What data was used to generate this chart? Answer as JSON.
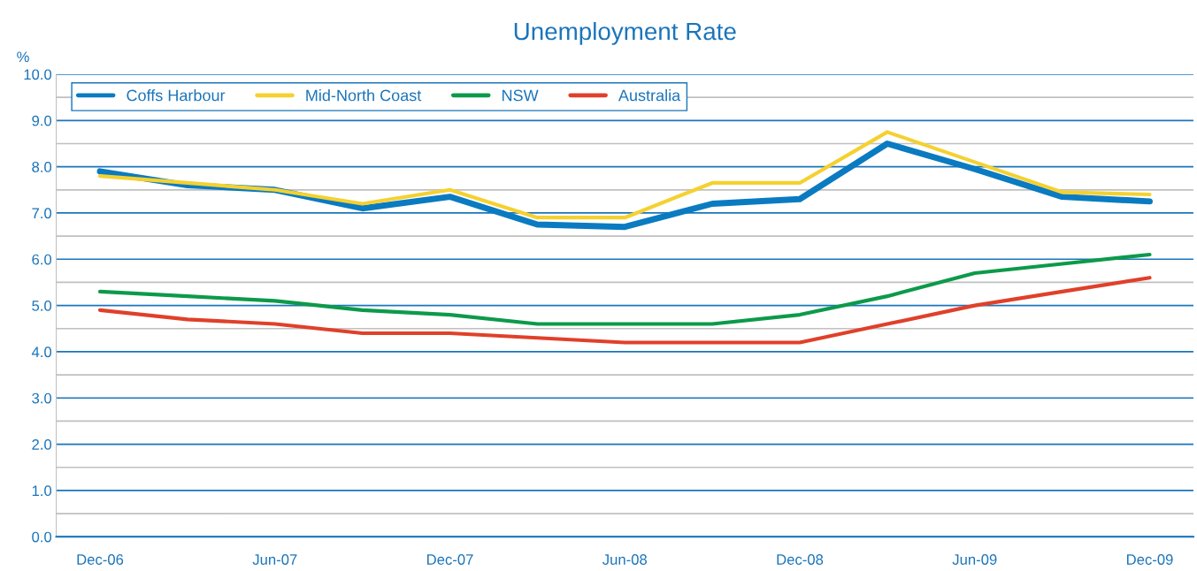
{
  "chart_data": {
    "type": "line",
    "title": "Unemployment Rate",
    "ylabel": "%",
    "categories": [
      "Dec-06",
      null,
      "Jun-07",
      null,
      "Dec-07",
      null,
      "Jun-08",
      null,
      "Dec-08",
      null,
      "Jun-09",
      null,
      "Dec-09"
    ],
    "series": [
      {
        "name": "Coffs Harbour",
        "color": "#0a7bc1",
        "values": [
          7.9,
          7.6,
          7.5,
          7.1,
          7.35,
          6.75,
          6.7,
          7.2,
          7.3,
          8.5,
          7.95,
          7.35,
          7.25
        ]
      },
      {
        "name": "Mid-North Coast",
        "color": "#f5d130",
        "values": [
          7.8,
          7.65,
          7.5,
          7.2,
          7.5,
          6.9,
          6.9,
          7.65,
          7.65,
          8.75,
          8.1,
          7.45,
          7.4
        ]
      },
      {
        "name": "NSW",
        "color": "#0c9a4a",
        "values": [
          5.3,
          5.2,
          5.1,
          4.9,
          4.8,
          4.6,
          4.6,
          4.6,
          4.8,
          5.2,
          5.7,
          5.9,
          6.1
        ]
      },
      {
        "name": "Australia",
        "color": "#e0402a",
        "values": [
          4.9,
          4.7,
          4.6,
          4.4,
          4.4,
          4.3,
          4.2,
          4.2,
          4.2,
          4.6,
          5.0,
          5.3,
          5.6
        ]
      }
    ],
    "ylim": [
      0,
      10
    ],
    "yticks": [
      {
        "value": 0,
        "label": "0.0"
      },
      {
        "value": 0.5,
        "label": null
      },
      {
        "value": 1,
        "label": "1.0"
      },
      {
        "value": 1.5,
        "label": null
      },
      {
        "value": 2,
        "label": "2.0"
      },
      {
        "value": 2.5,
        "label": null
      },
      {
        "value": 3,
        "label": "3.0"
      },
      {
        "value": 3.5,
        "label": null
      },
      {
        "value": 4,
        "label": "4.0"
      },
      {
        "value": 4.5,
        "label": null
      },
      {
        "value": 5,
        "label": "5.0"
      },
      {
        "value": 5.5,
        "label": null
      },
      {
        "value": 6,
        "label": "6.0"
      },
      {
        "value": 6.5,
        "label": null
      },
      {
        "value": 7,
        "label": "7.0"
      },
      {
        "value": 7.5,
        "label": null
      },
      {
        "value": 8,
        "label": "8.0"
      },
      {
        "value": 8.5,
        "label": null
      },
      {
        "value": 9,
        "label": "9.0"
      },
      {
        "value": 9.5,
        "label": null
      },
      {
        "value": 10,
        "label": "10.0"
      }
    ],
    "grid": "y",
    "legend": "top left",
    "marker": "none",
    "line_style": "solid"
  }
}
